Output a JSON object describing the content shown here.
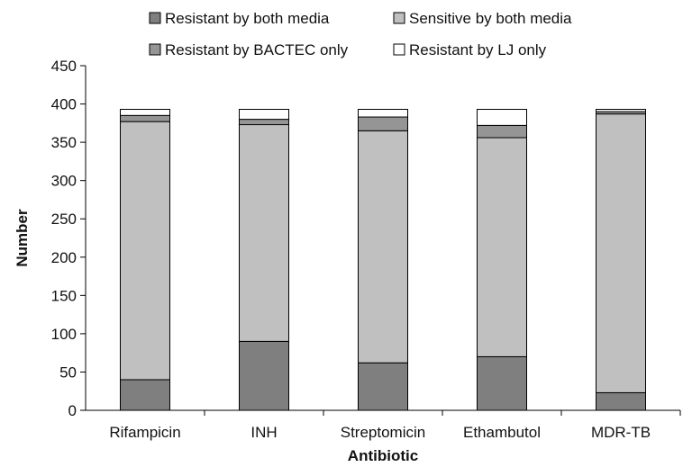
{
  "chart_data": {
    "type": "bar",
    "stacked": true,
    "title": "",
    "xlabel": "Antibiotic",
    "ylabel": "Number",
    "ylim": [
      0,
      450
    ],
    "yticks": [
      0,
      50,
      100,
      150,
      200,
      250,
      300,
      350,
      400,
      450
    ],
    "grid": false,
    "legend_position": "top",
    "categories": [
      "Rifampicin",
      "INH",
      "Streptomicin",
      "Ethambutol",
      "MDR-TB"
    ],
    "series": [
      {
        "name": "Resistant by both media",
        "color": "#7f7f7f",
        "values": [
          40,
          90,
          62,
          70,
          23
        ]
      },
      {
        "name": "Sensitive by both media",
        "color": "#c0c0c0",
        "values": [
          337,
          283,
          303,
          286,
          364
        ]
      },
      {
        "name": "Resistant by BACTEC only",
        "color": "#959595",
        "values": [
          8,
          7,
          18,
          16,
          3
        ]
      },
      {
        "name": "Resistant by LJ only",
        "color": "#ffffff",
        "values": [
          8,
          13,
          10,
          21,
          3
        ]
      }
    ]
  }
}
